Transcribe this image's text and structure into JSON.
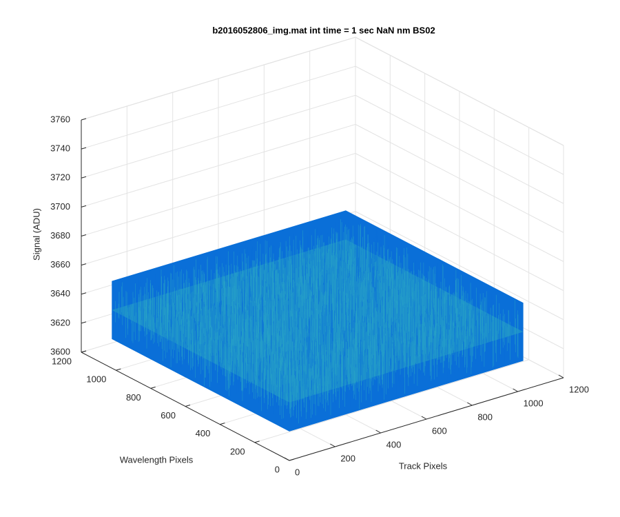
{
  "chart_data": {
    "type": "surface3d",
    "title": "b2016052806_img.mat int time = 1 sec  NaN nm BS02",
    "xlabel": "Track Pixels",
    "ylabel": "Wavelength Pixels",
    "zlabel": "Signal (ADU)",
    "xlim": [
      0,
      1200
    ],
    "xticks": [
      0,
      200,
      400,
      600,
      800,
      1000,
      1200
    ],
    "ylim": [
      0,
      1200
    ],
    "yticks": [
      0,
      200,
      400,
      600,
      800,
      1000,
      1200
    ],
    "zlim": [
      3600,
      3760
    ],
    "zticks": [
      3600,
      3620,
      3640,
      3660,
      3680,
      3700,
      3720,
      3740,
      3760
    ],
    "grid": true,
    "surface": {
      "x": [
        0,
        1024
      ],
      "y": [
        0,
        1024
      ],
      "z_mean": 3640,
      "z_range": [
        3620,
        3660
      ],
      "colors": [
        "#0a6fd8",
        "#2aa6c4"
      ]
    }
  }
}
